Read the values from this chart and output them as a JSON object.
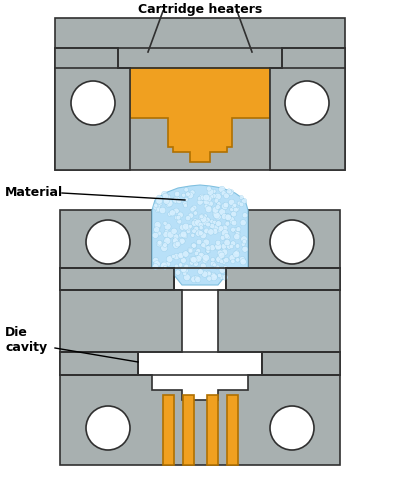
{
  "bg_color": "#ffffff",
  "steel_color": "#a8b0b0",
  "steel_outline": "#303030",
  "orange_color": "#f0a020",
  "orange_outline": "#b07000",
  "blue_material": "#b8e0f8",
  "blue_dot": "#d8f0ff",
  "blue_dot_edge": "#80c0e0",
  "white_cavity": "#ffffff",
  "label_cartridge": "Cartridge heaters",
  "label_material": "Material",
  "label_die": "Die\ncavity",
  "lw": 1.2
}
